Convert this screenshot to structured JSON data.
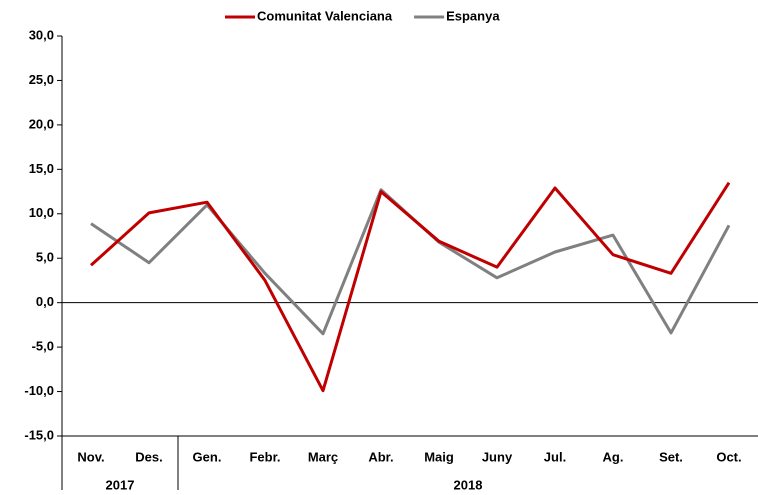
{
  "chart_data": {
    "type": "line",
    "categories": [
      "Nov.",
      "Des.",
      "Gen.",
      "Febr.",
      "Març",
      "Abr.",
      "Maig",
      "Juny",
      "Jul.",
      "Ag.",
      "Set.",
      "Oct."
    ],
    "category_years": [
      "2017",
      "2017",
      "2018",
      "2018",
      "2018",
      "2018",
      "2018",
      "2018",
      "2018",
      "2018",
      "2018",
      "2018"
    ],
    "series": [
      {
        "name": "Comunitat Valenciana",
        "color": "#c00000",
        "values": [
          4.2,
          10.1,
          11.3,
          2.5,
          -9.9,
          12.5,
          6.9,
          4.0,
          12.9,
          5.4,
          3.3,
          13.5
        ]
      },
      {
        "name": "Espanya",
        "color": "#808080",
        "values": [
          8.9,
          4.5,
          11.0,
          3.3,
          -3.5,
          12.7,
          6.8,
          2.8,
          5.7,
          7.6,
          -3.4,
          8.7
        ]
      }
    ],
    "ylim": [
      -15,
      30
    ],
    "yticks": [
      {
        "value": -15,
        "label": "-15,0"
      },
      {
        "value": -10,
        "label": "-10,0"
      },
      {
        "value": -5,
        "label": "-5,0"
      },
      {
        "value": 0,
        "label": "0,0"
      },
      {
        "value": 5,
        "label": "5,0"
      },
      {
        "value": 10,
        "label": "10,0"
      },
      {
        "value": 15,
        "label": "15,0"
      },
      {
        "value": 20,
        "label": "20,0"
      },
      {
        "value": 25,
        "label": "25,0"
      },
      {
        "value": 30,
        "label": "30,0"
      }
    ],
    "grid": false,
    "legend": "top"
  }
}
